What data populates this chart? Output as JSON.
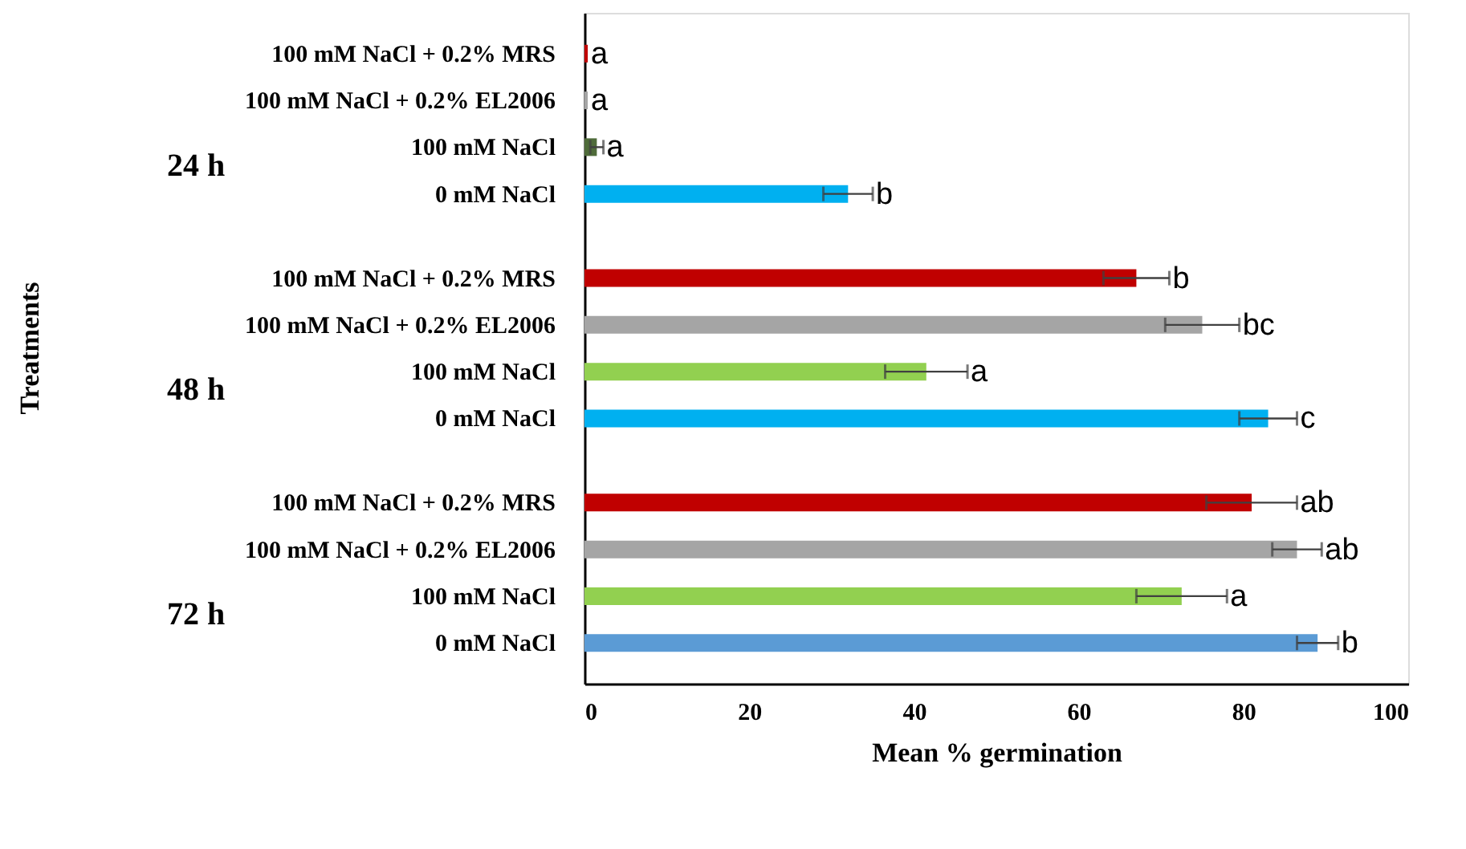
{
  "chart_data": {
    "type": "bar",
    "orientation": "horizontal",
    "xlabel": "Mean % germination",
    "categories": [
      "100 mM NaCl + 0.2% MRS",
      "100 mM NaCl + 0.2% EL2006",
      "100 mM NaCl",
      "0 mM NaCl",
      "100 mM NaCl + 0.2% MRS",
      "100 mM NaCl + 0.2% EL2006",
      "100 mM NaCl",
      "0 mM NaCl",
      "100 mM NaCl + 0.2% MRS",
      "100 mM NaCl + 0.2% EL2006",
      "100 mM NaCl",
      "0 mM NaCl"
    ],
    "values": [
      0.4,
      0.4,
      1.5,
      32,
      67,
      75,
      41.5,
      83,
      81,
      86.5,
      72.5,
      89
    ],
    "errors": [
      null,
      null,
      0.8,
      3,
      4,
      4.5,
      5,
      3.5,
      5.5,
      3,
      5.5,
      2.5
    ],
    "colors": [
      "#c00000",
      "#a5a5a5",
      "#4f6b3a",
      "#00b0f0",
      "#c00000",
      "#a5a5a5",
      "#92d050",
      "#00b0f0",
      "#c00000",
      "#a5a5a5",
      "#92d050",
      "#5b9bd5"
    ],
    "value_labels": [
      "a",
      "a",
      "a",
      "b",
      "b",
      "bc",
      "a",
      "c",
      "ab",
      "ab",
      "a",
      "b"
    ],
    "annotations": [
      "24 h",
      "48 h",
      "72 h",
      "Treatments"
    ],
    "xlim": [
      0,
      100
    ],
    "xticks": [
      0,
      20,
      40,
      60,
      80,
      100
    ],
    "grid": false
  }
}
